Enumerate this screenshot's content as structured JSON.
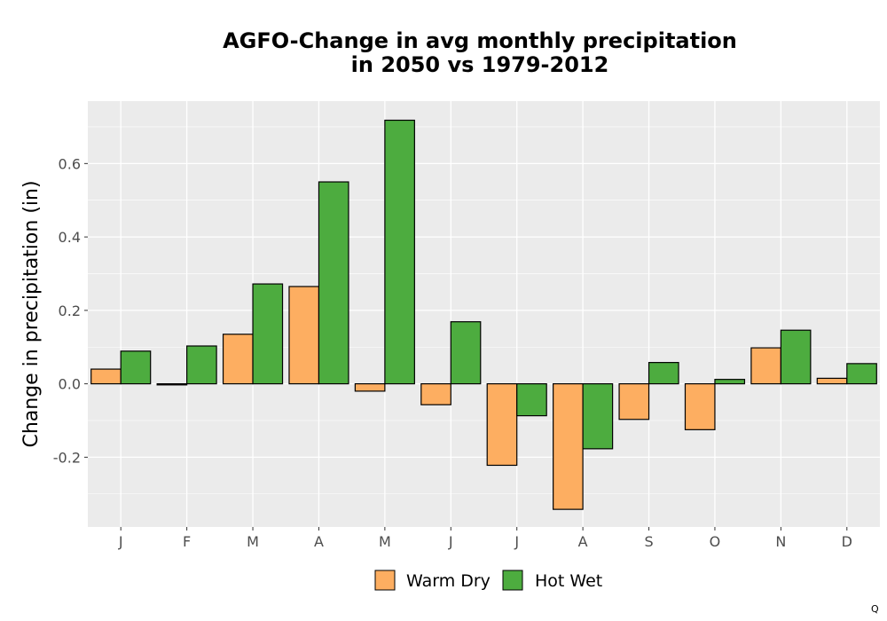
{
  "chart_data": {
    "type": "bar",
    "title": [
      "AGFO-Change in avg monthly precipitation",
      "in 2050 vs 1979-2012"
    ],
    "xlabel": "",
    "ylabel": "Change in precipitation (in)",
    "categories": [
      "J",
      "F",
      "M",
      "A",
      "M",
      "J",
      "J",
      "A",
      "S",
      "O",
      "N",
      "D"
    ],
    "series": [
      {
        "name": "Warm Dry",
        "color": "#FDAE61",
        "values": [
          0.04,
          -0.003,
          0.135,
          0.265,
          -0.02,
          -0.057,
          -0.222,
          -0.342,
          -0.097,
          -0.125,
          0.098,
          0.015
        ]
      },
      {
        "name": "Hot Wet",
        "color": "#4DAC3F",
        "values": [
          0.089,
          0.103,
          0.272,
          0.55,
          0.718,
          0.169,
          -0.087,
          -0.177,
          0.058,
          0.012,
          0.146,
          0.055
        ]
      }
    ],
    "ylim": [
      -0.39,
      0.77
    ],
    "yticks": [
      -0.2,
      0.0,
      0.2,
      0.4,
      0.6
    ],
    "ytick_labels": [
      "-0.2",
      "0.0",
      "0.2",
      "0.4",
      "0.6"
    ],
    "grid": true,
    "legend_position": "bottom",
    "panel_color": "#EBEBEB",
    "grid_color": "#FFFFFF"
  },
  "corner_mark": "Q"
}
